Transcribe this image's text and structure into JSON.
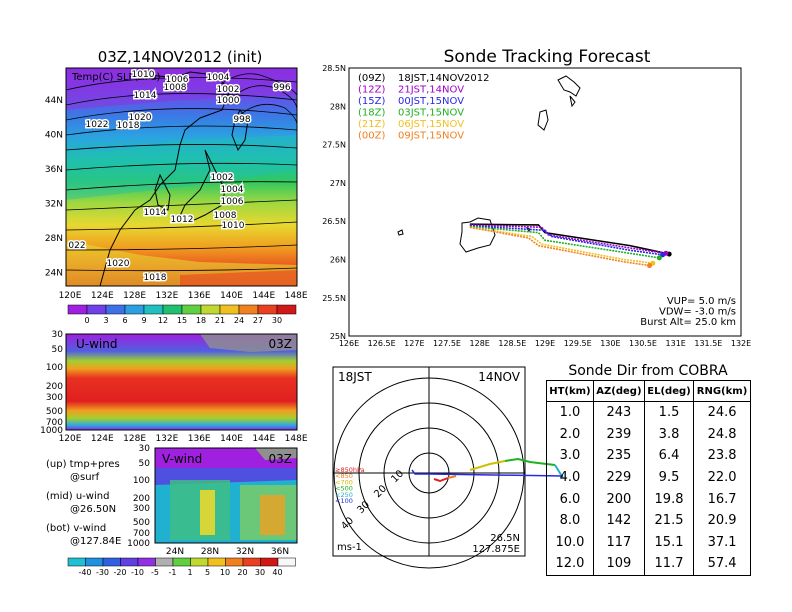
{
  "left": {
    "title": "03Z,14NOV2012 (init)",
    "map_label": "Temp(C) SLP(hPa)",
    "lat_ticks": [
      "44N",
      "40N",
      "36N",
      "32N",
      "28N",
      "24N"
    ],
    "lon_ticks": [
      "120E",
      "124E",
      "128E",
      "132E",
      "136E",
      "140E",
      "144E",
      "148E"
    ],
    "isobars": [
      "1010",
      "1006",
      "1004",
      "1014",
      "1008",
      "1002",
      "1000",
      "996",
      "998",
      "1022",
      "1020",
      "1018",
      "1002",
      "1004",
      "1006",
      "1014",
      "1012",
      "1008",
      "1010",
      "022",
      "1020",
      "1018"
    ],
    "temp_colorbar": [
      "0",
      "3",
      "6",
      "9",
      "12",
      "15",
      "18",
      "21",
      "24",
      "27",
      "30"
    ],
    "u_panel": {
      "label": "U-wind",
      "time": "03Z",
      "yticks": [
        "30",
        "50",
        "100",
        "200",
        "300",
        "500",
        "700",
        "1000"
      ],
      "xticks": [
        "120E",
        "124E",
        "128E",
        "132E",
        "136E",
        "140E",
        "144E",
        "148E"
      ]
    },
    "v_panel": {
      "label": "V-wind",
      "time": "03Z",
      "yticks": [
        "30",
        "50",
        "100",
        "200",
        "300",
        "500",
        "700",
        "1000"
      ],
      "xticks": [
        "24N",
        "28N",
        "32N",
        "36N"
      ]
    },
    "legend_lines": [
      "(up) tmp+pres",
      "@surf",
      "(mid) u-wind",
      "@26.50N",
      "(bot) v-wind",
      "@127.84E"
    ],
    "wind_colorbar": [
      "-40",
      "-30",
      "-20",
      "-10",
      "-5",
      "-1",
      "1",
      "5",
      "10",
      "20",
      "30",
      "40"
    ]
  },
  "tracking": {
    "title": "Sonde Tracking Forecast",
    "launches": [
      {
        "label": "(09Z)",
        "time": "18JST,14NOV2012",
        "color": "#000000"
      },
      {
        "label": "(12Z)",
        "time": "21JST,14NOV",
        "color": "#a000c8"
      },
      {
        "label": "(15Z)",
        "time": "00JST,15NOV",
        "color": "#2828e6"
      },
      {
        "label": "(18Z)",
        "time": "03JST,15NOV",
        "color": "#20b020"
      },
      {
        "label": "(21Z)",
        "time": "06JST,15NOV",
        "color": "#f0c020"
      },
      {
        "label": "(00Z)",
        "time": "09JST,15NOV",
        "color": "#f08020"
      }
    ],
    "params": [
      "VUP= 5.0 m/s",
      "VDW= -3.0 m/s",
      "Burst Alt= 25.0 km"
    ],
    "lat_ticks": [
      "28.5N",
      "28N",
      "27.5N",
      "27N",
      "26.5N",
      "26N",
      "25.5N",
      "25N"
    ],
    "lon_ticks": [
      "126E",
      "126.5E",
      "127E",
      "127.5E",
      "128E",
      "128.5E",
      "129E",
      "129.5E",
      "130E",
      "130.5E",
      "131E",
      "131.5E",
      "132E"
    ]
  },
  "polar": {
    "time": "18JST",
    "date": "14NOV",
    "ring_labels": [
      "10",
      "20",
      "30",
      "40"
    ],
    "legend": [
      "≥850hPa",
      "<850",
      "<700",
      "<500",
      "<250",
      "<100"
    ],
    "legend_colors": [
      "#e02020",
      "#f08020",
      "#d0c000",
      "#20b020",
      "#20b0d0",
      "#2828e6"
    ],
    "unit": "ms-1",
    "lat": "26.5N",
    "lon": "127.875E"
  },
  "cobra": {
    "title": "Sonde Dir from COBRA",
    "headers": [
      "HT(km)",
      "AZ(deg)",
      "EL(deg)",
      "RNG(km)"
    ],
    "rows": [
      [
        "1.0",
        "243",
        "1.5",
        "24.6"
      ],
      [
        "2.0",
        "239",
        "3.8",
        "24.8"
      ],
      [
        "3.0",
        "235",
        "6.4",
        "23.8"
      ],
      [
        "4.0",
        "229",
        "9.5",
        "22.0"
      ],
      [
        "6.0",
        "200",
        "19.8",
        "16.7"
      ],
      [
        "8.0",
        "142",
        "21.5",
        "20.9"
      ],
      [
        "10.0",
        "117",
        "15.1",
        "37.1"
      ],
      [
        "12.0",
        "109",
        "11.7",
        "57.4"
      ]
    ]
  },
  "chart_data": [
    {
      "type": "table",
      "title": "Sonde Dir from COBRA",
      "columns": [
        "HT(km)",
        "AZ(deg)",
        "EL(deg)",
        "RNG(km)"
      ],
      "rows": [
        [
          1.0,
          243,
          1.5,
          24.6
        ],
        [
          2.0,
          239,
          3.8,
          24.8
        ],
        [
          3.0,
          235,
          6.4,
          23.8
        ],
        [
          4.0,
          229,
          9.5,
          22.0
        ],
        [
          6.0,
          200,
          19.8,
          16.7
        ],
        [
          8.0,
          142,
          21.5,
          20.9
        ],
        [
          10.0,
          117,
          15.1,
          37.1
        ],
        [
          12.0,
          109,
          11.7,
          57.4
        ]
      ]
    },
    {
      "type": "line",
      "title": "Sonde Tracking Forecast",
      "xlim": [
        126,
        132
      ],
      "ylim": [
        25,
        28.5
      ],
      "series": [
        {
          "name": "(09Z) 18JST,14NOV2012",
          "x": [
            127.85,
            128.9,
            129.0,
            130.3,
            130.9
          ],
          "y": [
            26.46,
            26.45,
            26.35,
            26.18,
            26.07
          ]
        },
        {
          "name": "(12Z) 21JST,14NOV",
          "x": [
            127.85,
            128.95,
            129.05,
            130.3,
            130.85
          ],
          "y": [
            26.45,
            26.42,
            26.32,
            26.15,
            26.08
          ]
        },
        {
          "name": "(15Z) 00JST,15NOV",
          "x": [
            127.85,
            129.0,
            129.1,
            130.3,
            130.8
          ],
          "y": [
            26.44,
            26.38,
            26.3,
            26.12,
            26.06
          ]
        },
        {
          "name": "(18Z) 03JST,15NOV",
          "x": [
            127.85,
            128.9,
            129.0,
            130.3,
            130.75
          ],
          "y": [
            26.43,
            26.35,
            26.25,
            26.08,
            26.02
          ]
        },
        {
          "name": "(21Z) 06JST,15NOV",
          "x": [
            127.85,
            128.8,
            128.95,
            130.2,
            130.65
          ],
          "y": [
            26.42,
            26.3,
            26.2,
            26.0,
            25.95
          ]
        },
        {
          "name": "(00Z) 09JST,15NOV",
          "x": [
            127.85,
            128.75,
            128.9,
            130.2,
            130.6
          ],
          "y": [
            26.42,
            26.28,
            26.18,
            25.97,
            25.92
          ]
        }
      ]
    }
  ]
}
